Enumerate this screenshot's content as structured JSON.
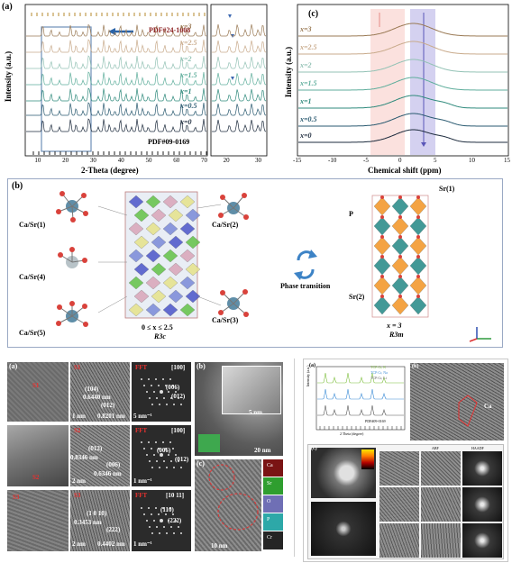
{
  "panel_a": {
    "label": "(a)",
    "y_axis": "Intensity (a.u.)",
    "x_axis": "2-Theta (degree)",
    "x_ticks": [
      "10",
      "20",
      "30",
      "40",
      "50",
      "60",
      "70"
    ],
    "zoom_x_ticks": [
      "20",
      "30"
    ],
    "top_ref": "PDF#24-1008",
    "bottom_ref": "PDF#09-0169",
    "series": [
      "x=3",
      "x=2.5",
      "x=2",
      "x=1.5",
      "x=1",
      "x=0.5",
      "x=0"
    ],
    "colors": [
      "#9a7a55",
      "#c9ab8c",
      "#93c2b5",
      "#5fae9c",
      "#2f8a7c",
      "#2a5a70",
      "#1d2b3d"
    ]
  },
  "panel_c": {
    "label": "(c)",
    "y_axis": "Intensity (a.u.)",
    "x_axis": "Chemical shift (ppm)",
    "x_ticks": [
      "-15",
      "-10",
      "-5",
      "0",
      "5",
      "10",
      "15"
    ],
    "series": [
      "x=3",
      "x=2.5",
      "x=2",
      "x=1.5",
      "x=1",
      "x=0.5",
      "x=0"
    ]
  },
  "panel_b": {
    "label": "(b)",
    "left_sites": [
      "Ca/Sr(1)",
      "Ca/Sr(4)",
      "Ca/Sr(5)"
    ],
    "right_sites": [
      "Ca/Sr(2)",
      "Ca/Sr(3)"
    ],
    "left_range": "0 ≤ x ≤ 2.5",
    "left_group": "R3c",
    "center_label": "Phase transition",
    "right_sites_label": [
      "Sr(1)",
      "P",
      "Sr(2)"
    ],
    "right_x": "x = 3",
    "right_group": "R3m"
  },
  "bottom_left": {
    "label_a": "(a)",
    "label_b": "(b)",
    "label_c": "(c)",
    "fft": [
      "FFT",
      "FFT",
      "FFT"
    ],
    "zone_axes": [
      "[100]",
      "[100]",
      "[10 11]"
    ],
    "s_labels": [
      "S1",
      "S1",
      "S2",
      "S2",
      "S3",
      "S3"
    ],
    "d1": [
      "(104)",
      "0.6440 nm",
      "(012)",
      "1 nm",
      "0.8201 nm"
    ],
    "d2": [
      "(012)",
      "0.8346 nm",
      "(006)",
      "0.6346 nm",
      "2 nm"
    ],
    "d3": [
      "(1 0 10)",
      "0.3453 nm",
      "(222)",
      "2 nm",
      "0.4402 nm"
    ],
    "fft_spots_1": [
      "(006)",
      "(012)"
    ],
    "fft_spots_2": [
      "(006)",
      "(012)"
    ],
    "fft_spots_3": [
      "(110)",
      "(222)"
    ],
    "scale_5nm": "5 nm⁻¹",
    "scale_1nm": "1 nm⁻¹",
    "sem_scale": "5 nm",
    "sem_scale2": "20 nm",
    "tem_scale": "10 nm",
    "eds": [
      "Ca",
      "Sr",
      "O",
      "P",
      "Cr"
    ]
  },
  "bottom_right": {
    "label_a": "(a)",
    "label_b": "(b)",
    "label_c": "(c)",
    "legend": [
      "TCP:Cr, K",
      "TCP:Cr, Na",
      "TCP:Cr, Li"
    ],
    "ref": "PDF#09-0169",
    "x_axis": "2 Theta (degree)",
    "y_axis": "Intensity (a.u.)",
    "ca_label": "Ca",
    "stem_labels": [
      "ABF",
      "HAADF"
    ]
  }
}
